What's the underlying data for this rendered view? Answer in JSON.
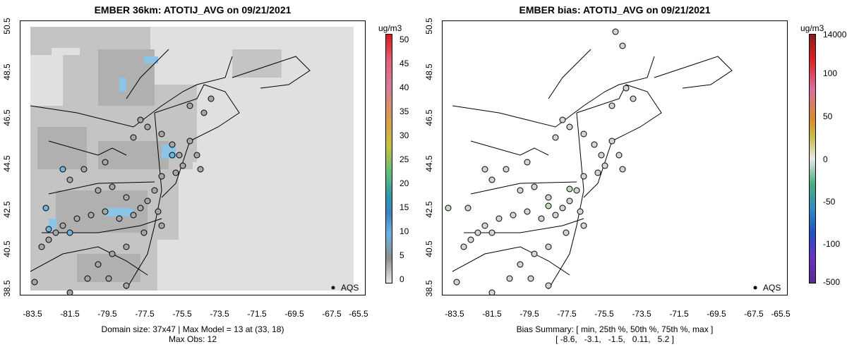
{
  "left_panel": {
    "title": "EMBER 36km: ATOTIJ_AVG on 09/21/2021",
    "y_ticks": [
      "50.5",
      "48.5",
      "46.5",
      "44.5",
      "42.5",
      "40.5",
      "38.5"
    ],
    "x_ticks": [
      "-83.5",
      "-81.5",
      "-79.5",
      "-77.5",
      "-75.5",
      "-73.5",
      "-71.5",
      "-69.5",
      "-67.5",
      "-65.5"
    ],
    "colorbar_unit": "ug/m3",
    "colorbar_labels": [
      "50",
      "45",
      "40",
      "35",
      "30",
      "25",
      "20",
      "15",
      "10",
      "5",
      "0"
    ],
    "legend_label": "AQS",
    "footer_line1": "Domain size: 37x47 | Max Model = 13 at (33, 18)",
    "footer_line2": "Max Obs: 12"
  },
  "right_panel": {
    "title": "EMBER bias: ATOTIJ_AVG on 09/21/2021",
    "y_ticks": [
      "50.5",
      "48.5",
      "46.5",
      "44.5",
      "42.5",
      "40.5",
      "38.5"
    ],
    "x_ticks": [
      "-83.5",
      "-81.5",
      "-79.5",
      "-77.5",
      "-75.5",
      "-73.5",
      "-71.5",
      "-69.5",
      "-67.5",
      "-65.5"
    ],
    "colorbar_unit": "ug/m3",
    "colorbar_labels": [
      "14000",
      "100",
      "50",
      "0",
      "-50",
      "-100",
      "-500"
    ],
    "legend_label": "AQS",
    "footer_line1": "Bias Summary: [ min, 25th %, 50th %, 75th %, max ]",
    "footer_line2": "[ -8.6,   -3.1,   -1.5,   0.11,   5.2 ]"
  },
  "colors": {
    "model_bg": "#e0e0e0",
    "model_mid": "#c8c8c8",
    "model_dark": "#b4b4b4",
    "model_blue": "#5aaee0"
  }
}
